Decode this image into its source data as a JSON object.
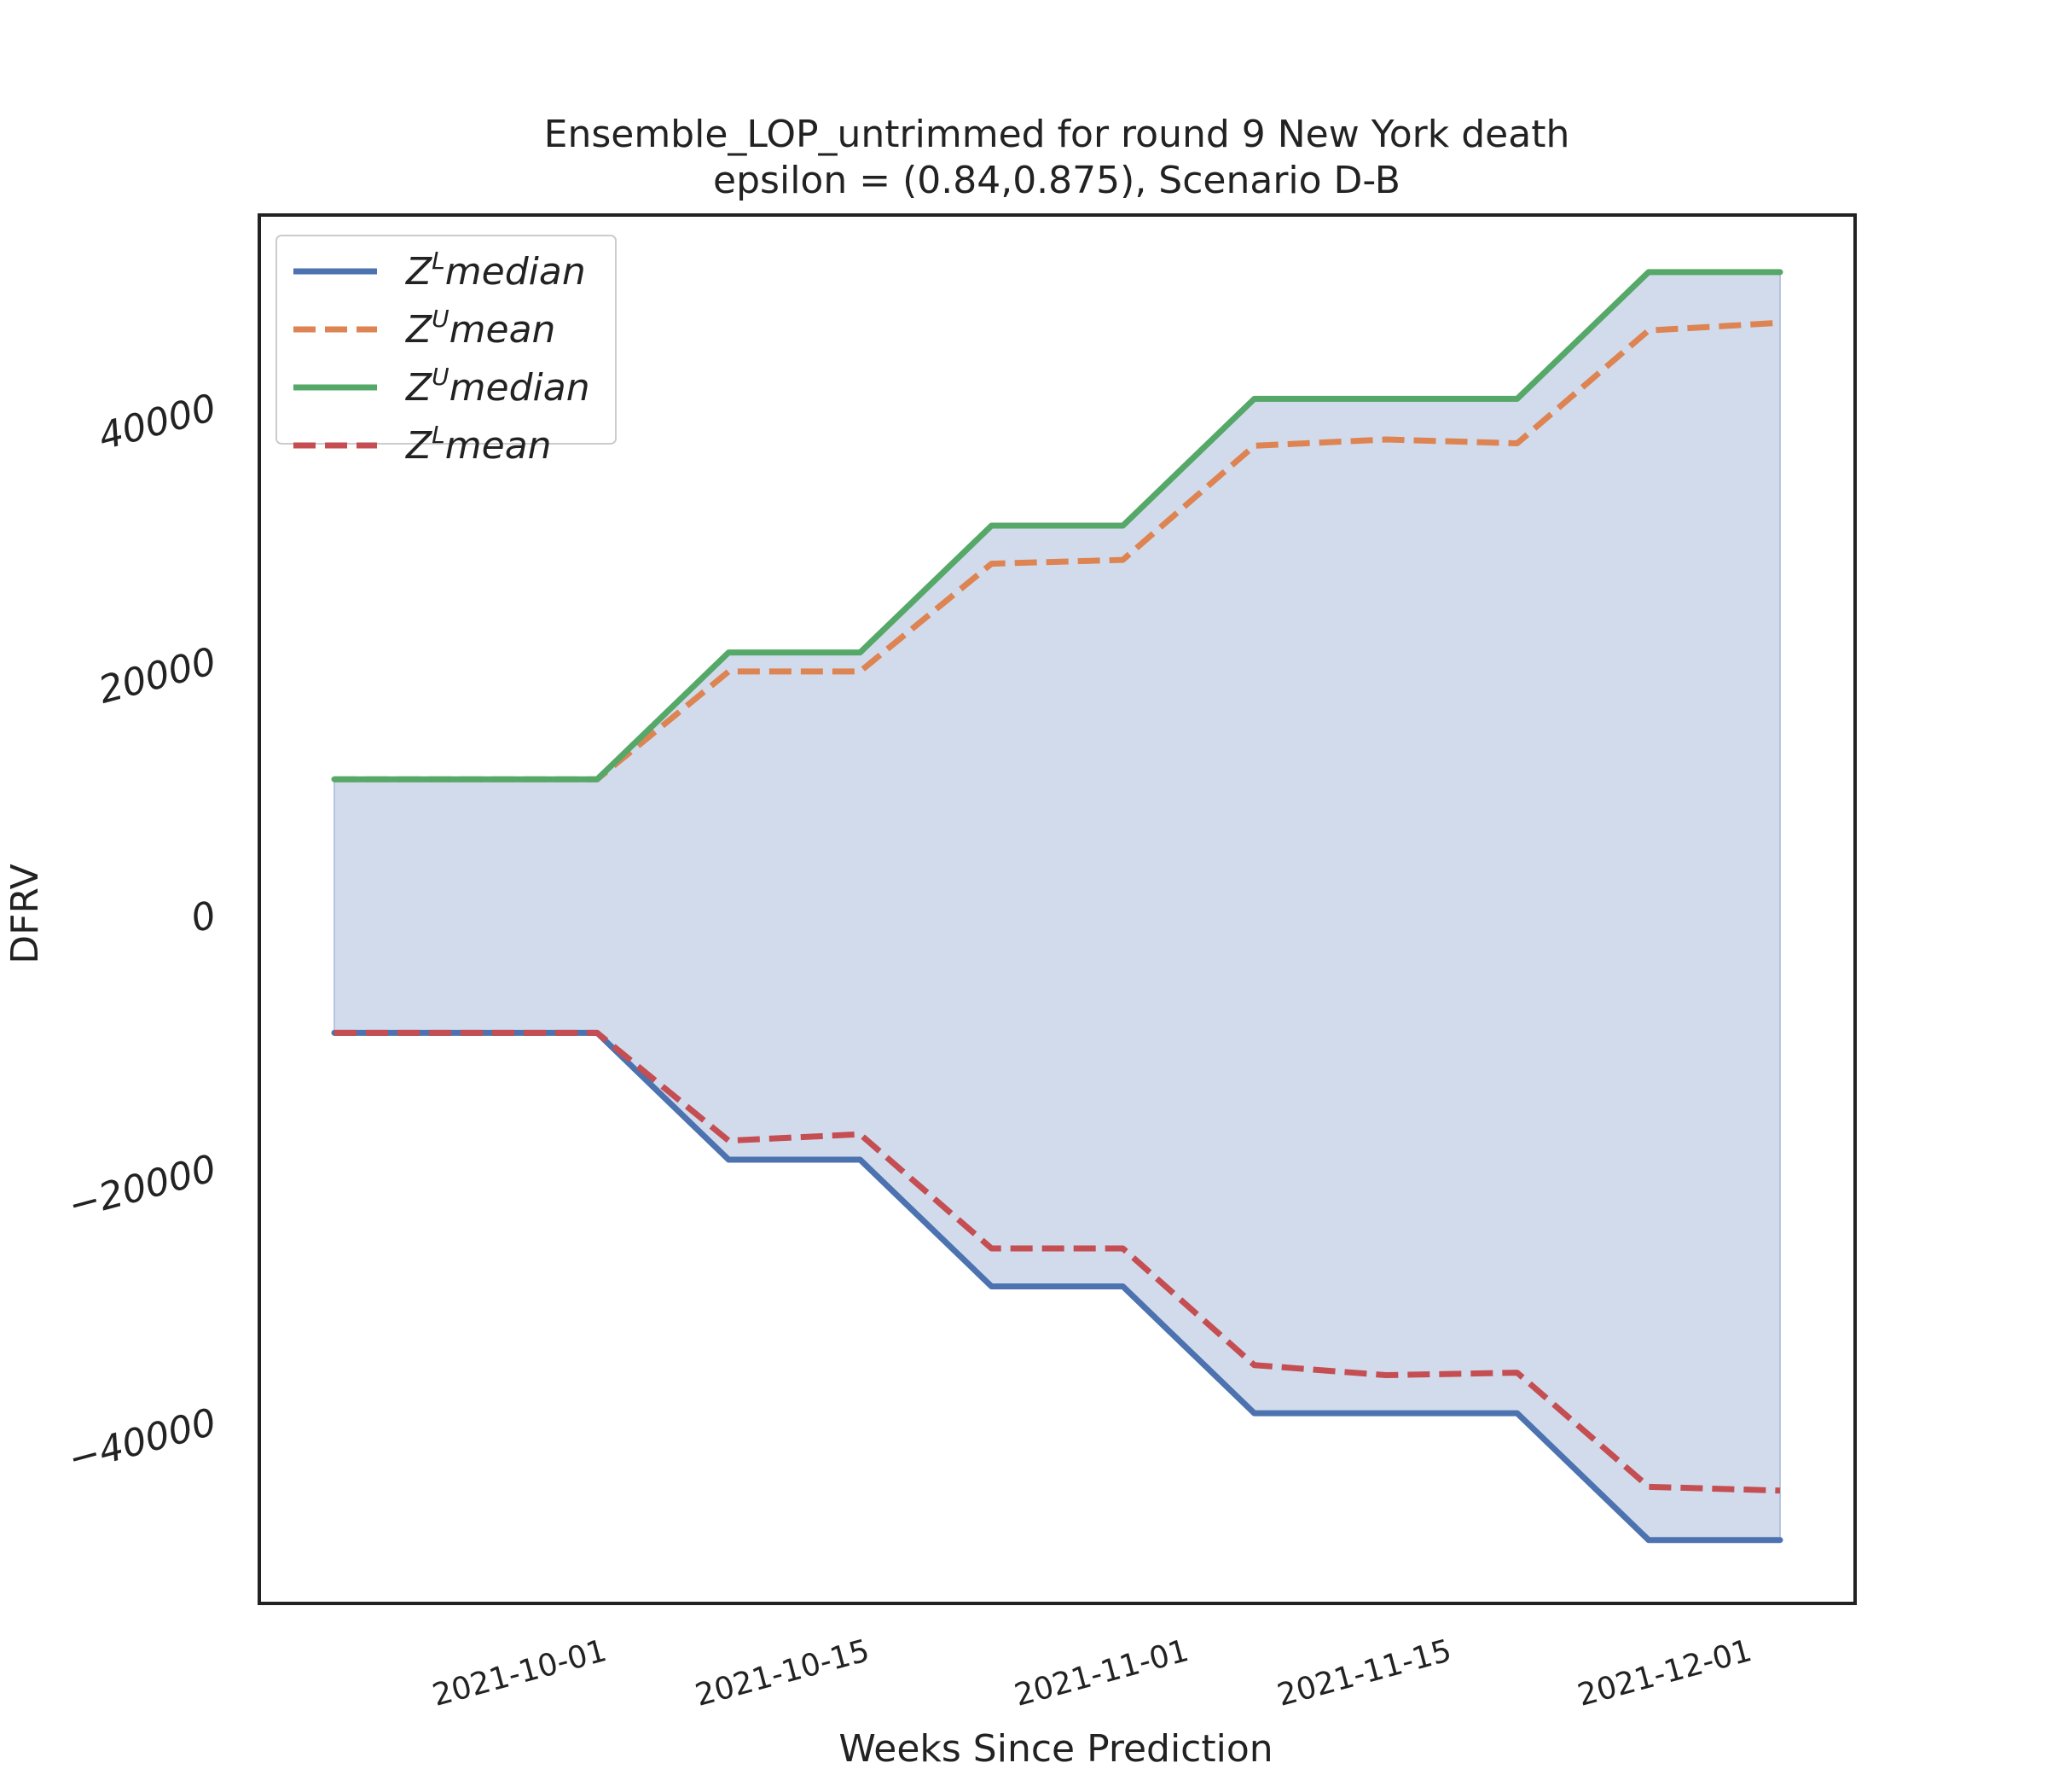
{
  "chart_data": {
    "type": "line",
    "title": "Ensemble_LOP_untrimmed for round 9 New York  death",
    "subtitle": "epsilon = (0.84,0.875), Scenario D-B",
    "xlabel": "Weeks Since Prediction",
    "ylabel": "DFRV",
    "x": [
      "2021-09-18",
      "2021-09-25",
      "2021-10-02",
      "2021-10-09",
      "2021-10-16",
      "2021-10-23",
      "2021-10-30",
      "2021-11-06",
      "2021-11-13",
      "2021-11-20",
      "2021-11-27",
      "2021-12-04"
    ],
    "xticks": [
      "2021-10-01",
      "2021-10-15",
      "2021-11-01",
      "2021-11-15",
      "2021-12-01"
    ],
    "yticks": [
      -40000,
      -20000,
      0,
      20000,
      40000
    ],
    "xlim": [
      "2021-09-14",
      "2021-12-08"
    ],
    "ylim": [
      -54500,
      55000
    ],
    "grid": false,
    "legend_position": "top-left",
    "fill_between": {
      "lower": "Z^L median",
      "upper": "Z^U median",
      "color": "#d2dbec"
    },
    "series": [
      {
        "name": "Z^L median",
        "base": "Z",
        "sup": "L",
        "label": "median",
        "color": "#4c72b0",
        "dash": "solid",
        "values": [
          -9500,
          -9500,
          -9500,
          -19500,
          -19500,
          -29500,
          -29500,
          -39500,
          -39500,
          -39500,
          -49500,
          -49500
        ]
      },
      {
        "name": "Z^U mean",
        "base": "Z",
        "sup": "U",
        "label": "mean",
        "color": "#dd8452",
        "dash": "dashed",
        "values": [
          10500,
          10500,
          10500,
          19000,
          19000,
          27500,
          27800,
          36800,
          37300,
          37000,
          45900,
          46500
        ]
      },
      {
        "name": "Z^U median",
        "base": "Z",
        "sup": "U",
        "label": "median",
        "color": "#55a868",
        "dash": "solid",
        "values": [
          10500,
          10500,
          10500,
          20500,
          20500,
          30500,
          30500,
          40500,
          40500,
          40500,
          50500,
          50500
        ]
      },
      {
        "name": "Z^L mean",
        "base": "Z",
        "sup": "L",
        "label": "mean",
        "color": "#c44e52",
        "dash": "dashed",
        "values": [
          -9500,
          -9500,
          -9500,
          -18000,
          -17500,
          -26500,
          -26500,
          -35700,
          -36500,
          -36300,
          -45300,
          -45600
        ]
      }
    ]
  }
}
